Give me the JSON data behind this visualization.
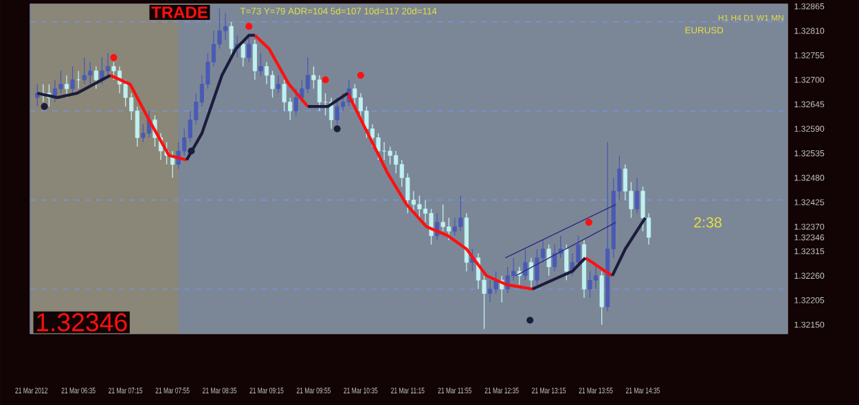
{
  "chart_data": {
    "type": "candlestick",
    "title": "TRADE",
    "subtitle": "T=73  Y=79  ADR=104  5d=107  10d=117  20d=114",
    "x": [
      "2012-03-21T06:00",
      "2012-03-21T06:05",
      "2012-03-21T06:10",
      "2012-03-21T06:15",
      "2012-03-21T06:20",
      "2012-03-21T06:25",
      "2012-03-21T06:30",
      "2012-03-21T06:35",
      "2012-03-21T06:40",
      "2012-03-21T06:45",
      "2012-03-21T06:50",
      "2012-03-21T06:55",
      "2012-03-21T07:00",
      "2012-03-21T07:05",
      "2012-03-21T07:10",
      "2012-03-21T07:15",
      "2012-03-21T07:20",
      "2012-03-21T07:25",
      "2012-03-21T07:30",
      "2012-03-21T07:35",
      "2012-03-21T07:40",
      "2012-03-21T07:45",
      "2012-03-21T07:50",
      "2012-03-21T07:55",
      "2012-03-21T08:00",
      "2012-03-21T08:05",
      "2012-03-21T08:10",
      "2012-03-21T08:15",
      "2012-03-21T08:20",
      "2012-03-21T08:25",
      "2012-03-21T08:30",
      "2012-03-21T08:35",
      "2012-03-21T08:40",
      "2012-03-21T08:45",
      "2012-03-21T08:50",
      "2012-03-21T08:55",
      "2012-03-21T09:00",
      "2012-03-21T09:05",
      "2012-03-21T09:10",
      "2012-03-21T09:15",
      "2012-03-21T09:20",
      "2012-03-21T09:25",
      "2012-03-21T09:30",
      "2012-03-21T09:35",
      "2012-03-21T09:40",
      "2012-03-21T09:45",
      "2012-03-21T09:50",
      "2012-03-21T09:55",
      "2012-03-21T10:00",
      "2012-03-21T10:05",
      "2012-03-21T10:10",
      "2012-03-21T10:15",
      "2012-03-21T10:20",
      "2012-03-21T10:25",
      "2012-03-21T10:30",
      "2012-03-21T10:35",
      "2012-03-21T10:40",
      "2012-03-21T10:45",
      "2012-03-21T10:50",
      "2012-03-21T10:55",
      "2012-03-21T11:00",
      "2012-03-21T11:05",
      "2012-03-21T11:10",
      "2012-03-21T11:15",
      "2012-03-21T11:20",
      "2012-03-21T11:25",
      "2012-03-21T11:30",
      "2012-03-21T11:35",
      "2012-03-21T11:40",
      "2012-03-21T11:45",
      "2012-03-21T11:50",
      "2012-03-21T11:55",
      "2012-03-21T12:00",
      "2012-03-21T12:05",
      "2012-03-21T12:10",
      "2012-03-21T12:15",
      "2012-03-21T12:20",
      "2012-03-21T12:25",
      "2012-03-21T12:30",
      "2012-03-21T12:35",
      "2012-03-21T12:40",
      "2012-03-21T12:45",
      "2012-03-21T12:50",
      "2012-03-21T12:55",
      "2012-03-21T13:00",
      "2012-03-21T13:05",
      "2012-03-21T13:10",
      "2012-03-21T13:15",
      "2012-03-21T13:20",
      "2012-03-21T13:25",
      "2012-03-21T13:30",
      "2012-03-21T13:35",
      "2012-03-21T13:40",
      "2012-03-21T13:45",
      "2012-03-21T13:50",
      "2012-03-21T13:55",
      "2012-03-21T14:00",
      "2012-03-21T14:05",
      "2012-03-21T14:10",
      "2012-03-21T14:15",
      "2012-03-21T14:20",
      "2012-03-21T14:25",
      "2012-03-21T14:30",
      "2012-03-21T14:35",
      "2012-03-21T14:40"
    ],
    "ohlc": [
      [
        1.3266,
        1.3269,
        1.3264,
        1.3267
      ],
      [
        1.3267,
        1.3269,
        1.3265,
        1.3267
      ],
      [
        1.3267,
        1.3269,
        1.3264,
        1.3266
      ],
      [
        1.3266,
        1.327,
        1.3265,
        1.3268
      ],
      [
        1.3268,
        1.3272,
        1.3267,
        1.3269
      ],
      [
        1.3269,
        1.3271,
        1.3266,
        1.3268
      ],
      [
        1.3268,
        1.3273,
        1.3267,
        1.327
      ],
      [
        1.327,
        1.3272,
        1.3268,
        1.327
      ],
      [
        1.327,
        1.3275,
        1.3269,
        1.3271
      ],
      [
        1.3271,
        1.3274,
        1.3269,
        1.3272
      ],
      [
        1.3272,
        1.3273,
        1.3268,
        1.327
      ],
      [
        1.327,
        1.3275,
        1.3269,
        1.3272
      ],
      [
        1.3272,
        1.3276,
        1.3271,
        1.3273
      ],
      [
        1.3273,
        1.3274,
        1.327,
        1.3272
      ],
      [
        1.3272,
        1.3273,
        1.3267,
        1.3269
      ],
      [
        1.3269,
        1.327,
        1.3264,
        1.3266
      ],
      [
        1.3266,
        1.3267,
        1.3261,
        1.3263
      ],
      [
        1.3263,
        1.3264,
        1.3255,
        1.3257
      ],
      [
        1.3257,
        1.326,
        1.3256,
        1.3258
      ],
      [
        1.3258,
        1.3263,
        1.3257,
        1.3261
      ],
      [
        1.3261,
        1.3262,
        1.3255,
        1.3257
      ],
      [
        1.3257,
        1.3258,
        1.3252,
        1.3254
      ],
      [
        1.3254,
        1.3256,
        1.3251,
        1.3253
      ],
      [
        1.3253,
        1.3254,
        1.3248,
        1.3251
      ],
      [
        1.3251,
        1.3256,
        1.325,
        1.3254
      ],
      [
        1.3254,
        1.3259,
        1.3253,
        1.3257
      ],
      [
        1.3257,
        1.3263,
        1.3256,
        1.3261
      ],
      [
        1.3261,
        1.3267,
        1.326,
        1.3265
      ],
      [
        1.3265,
        1.3271,
        1.3264,
        1.3269
      ],
      [
        1.3269,
        1.3276,
        1.3268,
        1.3274
      ],
      [
        1.3274,
        1.3281,
        1.3273,
        1.3278
      ],
      [
        1.3278,
        1.3286,
        1.3277,
        1.3281
      ],
      [
        1.3281,
        1.3285,
        1.3279,
        1.3282
      ],
      [
        1.3282,
        1.3283,
        1.3275,
        1.3277
      ],
      [
        1.3277,
        1.328,
        1.3275,
        1.3278
      ],
      [
        1.3278,
        1.3279,
        1.3273,
        1.3275
      ],
      [
        1.3275,
        1.328,
        1.3274,
        1.3278
      ],
      [
        1.3278,
        1.3279,
        1.327,
        1.3272
      ],
      [
        1.3272,
        1.3276,
        1.3271,
        1.3273
      ],
      [
        1.3273,
        1.3274,
        1.3269,
        1.3271
      ],
      [
        1.3271,
        1.3272,
        1.3266,
        1.3268
      ],
      [
        1.3268,
        1.3271,
        1.3267,
        1.3269
      ],
      [
        1.3269,
        1.327,
        1.3263,
        1.3265
      ],
      [
        1.3265,
        1.3266,
        1.3261,
        1.3263
      ],
      [
        1.3263,
        1.3268,
        1.3262,
        1.3266
      ],
      [
        1.3266,
        1.327,
        1.3265,
        1.3268
      ],
      [
        1.3268,
        1.3275,
        1.3267,
        1.3271
      ],
      [
        1.3271,
        1.3273,
        1.3268,
        1.327
      ],
      [
        1.327,
        1.3271,
        1.3263,
        1.3265
      ],
      [
        1.3265,
        1.3267,
        1.3262,
        1.3265
      ],
      [
        1.3265,
        1.3266,
        1.3259,
        1.3261
      ],
      [
        1.3261,
        1.3266,
        1.326,
        1.3264
      ],
      [
        1.3264,
        1.3267,
        1.3263,
        1.3265
      ],
      [
        1.3265,
        1.327,
        1.3264,
        1.3268
      ],
      [
        1.3268,
        1.3269,
        1.3264,
        1.3266
      ],
      [
        1.3266,
        1.3267,
        1.3261,
        1.3263
      ],
      [
        1.3263,
        1.3264,
        1.3257,
        1.3259
      ],
      [
        1.3259,
        1.326,
        1.3255,
        1.3257
      ],
      [
        1.3257,
        1.3258,
        1.3252,
        1.3254
      ],
      [
        1.3254,
        1.3256,
        1.3252,
        1.3254
      ],
      [
        1.3254,
        1.3255,
        1.3251,
        1.3253
      ],
      [
        1.3253,
        1.3254,
        1.3249,
        1.3251
      ],
      [
        1.3251,
        1.3252,
        1.3246,
        1.3248
      ],
      [
        1.3248,
        1.3249,
        1.324,
        1.3243
      ],
      [
        1.3243,
        1.3245,
        1.324,
        1.3242
      ],
      [
        1.3242,
        1.3244,
        1.3239,
        1.3241
      ],
      [
        1.3241,
        1.3243,
        1.3238,
        1.324
      ],
      [
        1.324,
        1.3241,
        1.3233,
        1.3235
      ],
      [
        1.3235,
        1.324,
        1.3234,
        1.3238
      ],
      [
        1.3238,
        1.3242,
        1.3236,
        1.3237
      ],
      [
        1.3237,
        1.3239,
        1.3234,
        1.3236
      ],
      [
        1.3236,
        1.3239,
        1.3235,
        1.3237
      ],
      [
        1.3237,
        1.3244,
        1.3236,
        1.3239
      ],
      [
        1.3239,
        1.324,
        1.3227,
        1.3229
      ],
      [
        1.3229,
        1.3232,
        1.3227,
        1.323
      ],
      [
        1.323,
        1.3231,
        1.3223,
        1.3225
      ],
      [
        1.3225,
        1.3226,
        1.3214,
        1.3222
      ],
      [
        1.3222,
        1.3225,
        1.322,
        1.3223
      ],
      [
        1.3223,
        1.3227,
        1.3222,
        1.3225
      ],
      [
        1.3225,
        1.3226,
        1.322,
        1.3223
      ],
      [
        1.3223,
        1.3228,
        1.3222,
        1.3226
      ],
      [
        1.3226,
        1.323,
        1.3225,
        1.3227
      ],
      [
        1.3227,
        1.3228,
        1.3224,
        1.3226
      ],
      [
        1.3226,
        1.3232,
        1.3225,
        1.3229
      ],
      [
        1.3229,
        1.323,
        1.3223,
        1.3225
      ],
      [
        1.3225,
        1.3232,
        1.3224,
        1.323
      ],
      [
        1.323,
        1.3234,
        1.3229,
        1.3232
      ],
      [
        1.3232,
        1.3233,
        1.3226,
        1.3228
      ],
      [
        1.3228,
        1.3233,
        1.3227,
        1.3231
      ],
      [
        1.3231,
        1.3235,
        1.323,
        1.3232
      ],
      [
        1.3232,
        1.3233,
        1.3225,
        1.3227
      ],
      [
        1.3227,
        1.3231,
        1.3226,
        1.3229
      ],
      [
        1.3229,
        1.3235,
        1.3228,
        1.3233
      ],
      [
        1.3233,
        1.3234,
        1.3221,
        1.3223
      ],
      [
        1.3223,
        1.3227,
        1.3221,
        1.3225
      ],
      [
        1.3225,
        1.3228,
        1.3223,
        1.3226
      ],
      [
        1.3226,
        1.3227,
        1.3215,
        1.3219
      ],
      [
        1.3219,
        1.3256,
        1.3218,
        1.3232
      ],
      [
        1.3232,
        1.3248,
        1.323,
        1.3245
      ],
      [
        1.3245,
        1.3253,
        1.3243,
        1.325
      ],
      [
        1.325,
        1.3251,
        1.3243,
        1.3245
      ],
      [
        1.3245,
        1.3247,
        1.3239,
        1.3241
      ],
      [
        1.3241,
        1.3248,
        1.324,
        1.3245
      ],
      [
        1.3245,
        1.3246,
        1.3236,
        1.3239
      ],
      [
        1.3239,
        1.324,
        1.3233,
        1.32346
      ]
    ],
    "colors": [
      "#4a5ab4",
      "#c0f0f0",
      "#c0f0f0",
      "#4a5ab4",
      "#4a5ab4",
      "#c0f0f0",
      "#4a5ab4",
      "#c0f0f0",
      "#4a5ab4",
      "#4a5ab4",
      "#c0f0f0",
      "#4a5ab4",
      "#4a5ab4",
      "#c0f0f0",
      "#c0f0f0",
      "#c0f0f0",
      "#c0f0f0",
      "#c0f0f0",
      "#4a5ab4",
      "#4a5ab4",
      "#c0f0f0",
      "#c0f0f0",
      "#c0f0f0",
      "#c0f0f0",
      "#4a5ab4",
      "#4a5ab4",
      "#4a5ab4",
      "#4a5ab4",
      "#4a5ab4",
      "#4a5ab4",
      "#4a5ab4",
      "#4a5ab4",
      "#4a5ab4",
      "#c0f0f0",
      "#4a5ab4",
      "#c0f0f0",
      "#4a5ab4",
      "#c0f0f0",
      "#4a5ab4",
      "#c0f0f0",
      "#c0f0f0",
      "#4a5ab4",
      "#c0f0f0",
      "#c0f0f0",
      "#4a5ab4",
      "#4a5ab4",
      "#4a5ab4",
      "#c0f0f0",
      "#c0f0f0",
      "#c0f0f0",
      "#c0f0f0",
      "#4a5ab4",
      "#4a5ab4",
      "#4a5ab4",
      "#c0f0f0",
      "#c0f0f0",
      "#c0f0f0",
      "#c0f0f0",
      "#c0f0f0",
      "#c0f0f0",
      "#c0f0f0",
      "#c0f0f0",
      "#c0f0f0",
      "#c0f0f0",
      "#c0f0f0",
      "#c0f0f0",
      "#c0f0f0",
      "#c0f0f0",
      "#4a5ab4",
      "#c0f0f0",
      "#c0f0f0",
      "#4a5ab4",
      "#4a5ab4",
      "#c0f0f0",
      "#4a5ab4",
      "#c0f0f0",
      "#c0f0f0",
      "#4a5ab4",
      "#4a5ab4",
      "#c0f0f0",
      "#4a5ab4",
      "#4a5ab4",
      "#c0f0f0",
      "#4a5ab4",
      "#c0f0f0",
      "#4a5ab4",
      "#4a5ab4",
      "#c0f0f0",
      "#4a5ab4",
      "#4a5ab4",
      "#c0f0f0",
      "#4a5ab4",
      "#4a5ab4",
      "#c0f0f0",
      "#4a5ab4",
      "#4a5ab4",
      "#c0f0f0",
      "#4a5ab4",
      "#4a5ab4",
      "#4a5ab4",
      "#c0f0f0",
      "#c0f0f0",
      "#4a5ab4",
      "#c0f0f0",
      "#c0f0f0"
    ],
    "series": [
      {
        "type": "line",
        "color": "#ff1010",
        "x": [
          "2012-03-21T07:02",
          "2012-03-21T07:19",
          "2012-03-21T07:35",
          "2012-03-21T07:52",
          "2012-03-21T08:07",
          "2012-03-21T08:36",
          "2012-03-21T09:05",
          "2012-03-21T09:17",
          "2012-03-21T09:34",
          "2012-03-21T09:50",
          "2012-03-21T10:06",
          "2012-03-21T10:24",
          "2012-03-21T10:41",
          "2012-03-21T10:58",
          "2012-03-21T11:14",
          "2012-03-21T11:31",
          "2012-03-21T11:49",
          "2012-03-21T12:05",
          "2012-03-21T12:22",
          "2012-03-21T12:39",
          "2012-03-21T13:01",
          "2012-03-21T13:24",
          "2012-03-21T13:46",
          "2012-03-21T13:52",
          "2012-03-21T14:03",
          "2012-03-21T14:09"
        ],
        "values": [
          1.3271,
          1.3269,
          1.3261,
          1.3253,
          1.3252,
          null,
          1.328,
          1.3277,
          1.3269,
          1.3264,
          null,
          1.3267,
          1.3258,
          1.3249,
          1.3242,
          1.3237,
          1.3235,
          1.3232,
          1.3226,
          1.3224,
          1.3223,
          null,
          1.323,
          1.3229,
          1.3227,
          1.3226
        ]
      },
      {
        "type": "line",
        "color": "#1c1c3c",
        "x": [
          "2012-03-21T06:00",
          "2012-03-21T06:17",
          "2012-03-21T06:34",
          "2012-03-21T07:02",
          "2012-03-21T07:30",
          "2012-03-21T08:07",
          "2012-03-21T08:20",
          "2012-03-21T08:37",
          "2012-03-21T08:49",
          "2012-03-21T09:00",
          "2012-03-21T09:05",
          "2012-03-21T09:30",
          "2012-03-21T09:50",
          "2012-03-21T10:07",
          "2012-03-21T10:24",
          "2012-03-21T11:00",
          "2012-03-21T13:01",
          "2012-03-21T13:18",
          "2012-03-21T13:35",
          "2012-03-21T13:46",
          "2012-03-21T13:54",
          "2012-03-21T14:09",
          "2012-03-21T14:20",
          "2012-03-21T14:37"
        ],
        "values": [
          1.3267,
          1.3266,
          1.3267,
          1.3271,
          null,
          1.3252,
          1.3258,
          1.3271,
          1.3277,
          1.328,
          1.328,
          null,
          1.3264,
          1.3264,
          1.3267,
          null,
          1.3223,
          1.3225,
          1.3227,
          1.323,
          null,
          1.3226,
          1.3232,
          1.3239
        ]
      },
      {
        "type": "line",
        "color": "#2a2a80",
        "x": [
          "2012-03-21T12:38",
          "2012-03-21T14:12"
        ],
        "values": [
          1.323,
          1.3242
        ]
      },
      {
        "type": "line",
        "color": "#2a2a80",
        "x": [
          "2012-03-21T12:47",
          "2012-03-21T14:12"
        ],
        "values": [
          1.3226,
          1.3238
        ]
      },
      {
        "type": "scatter",
        "color": "#ff1010",
        "marker": "circle",
        "x": [
          "2012-03-21T07:05",
          "2012-03-21T09:00",
          "2012-03-21T10:05",
          "2012-03-21T10:35",
          "2012-03-21T13:49"
        ],
        "values": [
          1.3275,
          1.3282,
          1.327,
          1.3271,
          1.3238
        ]
      },
      {
        "type": "scatter",
        "color": "#1c1c3c",
        "marker": "circle",
        "x": [
          "2012-03-21T06:06",
          "2012-03-21T08:11",
          "2012-03-21T10:15",
          "2012-03-21T12:59"
        ],
        "values": [
          1.3264,
          1.3254,
          1.3259,
          1.3216
        ]
      }
    ],
    "bands": [
      {
        "axis": "x",
        "from": "2012-03-21T05:55",
        "to": "2012-03-21T08:00",
        "color": "#8a8678"
      }
    ],
    "ref_lines": [
      {
        "axis": "y",
        "value": 1.3283,
        "color": "#7a96e8",
        "line_style": "dashed"
      },
      {
        "axis": "y",
        "value": 1.3263,
        "color": "#7a96e8",
        "line_style": "dashed"
      },
      {
        "axis": "y",
        "value": 1.3243,
        "color": "#7a96e8",
        "line_style": "dashed"
      },
      {
        "axis": "y",
        "value": 1.3223,
        "color": "#7a96e8",
        "line_style": "dashed"
      }
    ],
    "annotations": [
      "EURUSD",
      "H1  H4  D1  W1  MN",
      "2:38",
      "1.32346"
    ],
    "xlim": [
      "2012-03-21T05:54",
      "2012-03-21T16:38"
    ],
    "ylim": [
      1.3213,
      1.3287
    ],
    "xticks": [
      {
        "value": "2012-03-21T05:55",
        "label": "21 Mar 2012"
      },
      {
        "value": "2012-03-21T06:35",
        "label": "21 Mar 06:35"
      },
      {
        "value": "2012-03-21T07:15",
        "label": "21 Mar 07:15"
      },
      {
        "value": "2012-03-21T07:55",
        "label": "21 Mar 07:55"
      },
      {
        "value": "2012-03-21T08:35",
        "label": "21 Mar 08:35"
      },
      {
        "value": "2012-03-21T09:15",
        "label": "21 Mar 09:15"
      },
      {
        "value": "2012-03-21T09:55",
        "label": "21 Mar 09:55"
      },
      {
        "value": "2012-03-21T10:35",
        "label": "21 Mar 10:35"
      },
      {
        "value": "2012-03-21T11:15",
        "label": "21 Mar 11:15"
      },
      {
        "value": "2012-03-21T11:55",
        "label": "21 Mar 11:55"
      },
      {
        "value": "2012-03-21T12:35",
        "label": "21 Mar 12:35"
      },
      {
        "value": "2012-03-21T13:15",
        "label": "21 Mar 13:15"
      },
      {
        "value": "2012-03-21T13:55",
        "label": "21 Mar 13:55"
      },
      {
        "value": "2012-03-21T14:35",
        "label": "21 Mar 14:35"
      }
    ],
    "yticks": [
      1.32865,
      {
        "value": 1.3281,
        "label": "1.32810"
      },
      1.32755,
      {
        "value": 1.327,
        "label": "1.32700"
      },
      1.32645,
      {
        "value": 1.3259,
        "label": "1.32590"
      },
      1.32535,
      {
        "value": 1.3248,
        "label": "1.32480"
      },
      1.32425,
      {
        "value": 1.3237,
        "label": "1.32370"
      },
      1.32346,
      1.32315,
      {
        "value": 1.3226,
        "label": "1.32260"
      },
      1.32205,
      {
        "value": 1.3215,
        "label": "1.32150"
      }
    ]
  }
}
